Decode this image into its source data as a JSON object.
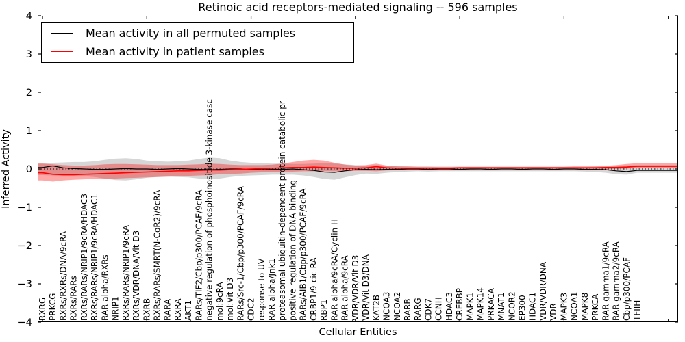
{
  "chart_data": {
    "type": "line",
    "title": "Retinoic acid receptors-mediated signaling -- 596 samples",
    "xlabel": "Cellular Entities",
    "ylabel": "Inferred Activity",
    "ylim": [
      -4,
      4
    ],
    "y_tick_values": [
      4,
      3,
      2,
      1,
      0,
      -1,
      -2,
      -3,
      -4
    ],
    "y_tick_labels": [
      "4",
      "3",
      "2",
      "1",
      "0",
      "−1",
      "−2",
      "−3",
      "−4"
    ],
    "grid": false,
    "legend_position": "upper left",
    "zero_line_style": "dotted",
    "x_label_rotation_deg": 90,
    "categories": [
      "RXRG",
      "PRKCG",
      "RXRs/RXRs/DNA/9cRA",
      "RXRs/RARs",
      "RXRs/RARs/NRIP1/9cRA/HDAC3",
      "RXRs/RARs/NRIP1/9cRA/HDAC1",
      "RAR alpha/RXRs",
      "NRIP1",
      "RXRs/RARs/NRIP1/9cRA",
      "RXRs/VDR/DNA/Vit D3",
      "RXRB",
      "RXRs/RARs/SMRT(N-CoR2)/9cRA",
      "RARA",
      "RXRA",
      "AKT1",
      "RARs/TIF2/Cbp/p300/PCAF/9cRA",
      "negative regulation of phosphoinositide 3-kinase casc",
      "mol:9cRA",
      "mol:Vit D3",
      "RARs/Src-1/Cbp/p300/PCAF/9cRA",
      "CDC2",
      "response to UV",
      "RAR alpha/Jnk1",
      "proteasomal ubiquitin-dependent protein catabolic pr",
      "positive regulation of DNA binding",
      "RARs/AIB1/Cbp/p300/PCAF/9cRA",
      "CRBP1/9-cic-RA",
      "RBP1",
      "RAR alpha/9cRA/Cyclin H",
      "RAR alpha/9cRA",
      "VDR/VDR/Vit D3",
      "VDR/Vit D3/DNA",
      "KAT2B",
      "NCOA3",
      "NCOA2",
      "RARB",
      "RARG",
      "CDK7",
      "CCNH",
      "HDAC3",
      "CREBBP",
      "MAPK1",
      "MAPK14",
      "PRKACA",
      "MNAT1",
      "NCOR2",
      "EP300",
      "HDAC1",
      "VDR/VDR/DNA",
      "VDR",
      "MAPK3",
      "NCOA1",
      "MAPK8",
      "PRKCA",
      "RAR gamma1/9cRA",
      "RAR gamma2/9cRA",
      "Cbp/p300/PCAF",
      "TFIIH"
    ],
    "series": [
      {
        "name": "Mean activity in all permuted samples",
        "color": "#000000",
        "line_width": 1.2,
        "band_color": "#999999",
        "band_alpha": 0.4,
        "values": [
          0.04,
          0.08,
          0.03,
          0.01,
          0.0,
          -0.01,
          -0.01,
          0.0,
          0.01,
          0.0,
          0.0,
          -0.01,
          0.0,
          0.01,
          0.0,
          -0.01,
          -0.02,
          -0.01,
          0.0,
          0.0,
          -0.01,
          -0.02,
          -0.01,
          -0.01,
          0.0,
          -0.02,
          -0.04,
          -0.08,
          -0.09,
          -0.05,
          -0.02,
          -0.01,
          -0.02,
          -0.01,
          -0.01,
          0.0,
          0.0,
          -0.01,
          0.0,
          0.0,
          -0.01,
          0.0,
          0.0,
          -0.01,
          0.0,
          0.0,
          -0.01,
          0.0,
          0.0,
          -0.01,
          0.0,
          0.0,
          -0.01,
          -0.01,
          -0.02,
          -0.05,
          -0.07,
          -0.04
        ],
        "band_upper": [
          0.15,
          0.16,
          0.17,
          0.18,
          0.18,
          0.2,
          0.24,
          0.27,
          0.28,
          0.26,
          0.22,
          0.2,
          0.19,
          0.2,
          0.22,
          0.26,
          0.3,
          0.28,
          0.22,
          0.18,
          0.16,
          0.15,
          0.14,
          0.14,
          0.13,
          0.13,
          0.14,
          0.15,
          0.14,
          0.12,
          0.1,
          0.09,
          0.1,
          0.08,
          0.07,
          0.06,
          0.06,
          0.06,
          0.05,
          0.05,
          0.05,
          0.05,
          0.05,
          0.05,
          0.05,
          0.05,
          0.05,
          0.05,
          0.05,
          0.05,
          0.05,
          0.05,
          0.05,
          0.06,
          0.06,
          0.07,
          0.08,
          0.1
        ],
        "band_lower": [
          -0.16,
          -0.17,
          -0.18,
          -0.18,
          -0.19,
          -0.21,
          -0.25,
          -0.29,
          -0.3,
          -0.27,
          -0.23,
          -0.21,
          -0.2,
          -0.21,
          -0.22,
          -0.25,
          -0.27,
          -0.25,
          -0.21,
          -0.18,
          -0.17,
          -0.16,
          -0.15,
          -0.15,
          -0.15,
          -0.17,
          -0.21,
          -0.26,
          -0.28,
          -0.22,
          -0.16,
          -0.12,
          -0.13,
          -0.1,
          -0.08,
          -0.07,
          -0.06,
          -0.07,
          -0.06,
          -0.06,
          -0.06,
          -0.06,
          -0.06,
          -0.06,
          -0.06,
          -0.06,
          -0.06,
          -0.06,
          -0.06,
          -0.06,
          -0.06,
          -0.06,
          -0.07,
          -0.08,
          -0.1,
          -0.14,
          -0.15,
          -0.1
        ]
      },
      {
        "name": "Mean activity in patient samples",
        "color": "#ff0000",
        "line_width": 1.6,
        "band_color": "#ff0000",
        "band_alpha": 0.35,
        "values": [
          -0.1,
          -0.14,
          -0.15,
          -0.15,
          -0.14,
          -0.13,
          -0.12,
          -0.11,
          -0.1,
          -0.09,
          -0.08,
          -0.07,
          -0.06,
          -0.05,
          -0.05,
          -0.04,
          -0.03,
          -0.03,
          -0.02,
          -0.01,
          0.0,
          0.01,
          0.02,
          0.03,
          0.04,
          0.04,
          0.05,
          0.04,
          0.03,
          0.02,
          0.02,
          0.03,
          0.06,
          0.03,
          0.02,
          0.02,
          0.02,
          0.02,
          0.02,
          0.02,
          0.03,
          0.03,
          0.03,
          0.03,
          0.03,
          0.03,
          0.03,
          0.03,
          0.03,
          0.03,
          0.03,
          0.03,
          0.03,
          0.03,
          0.04,
          0.04,
          0.05,
          0.07
        ],
        "band_upper": [
          0.14,
          0.12,
          0.1,
          0.09,
          0.09,
          0.1,
          0.12,
          0.13,
          0.13,
          0.12,
          0.11,
          0.1,
          0.1,
          0.1,
          0.11,
          0.12,
          0.14,
          0.13,
          0.11,
          0.1,
          0.1,
          0.1,
          0.11,
          0.14,
          0.18,
          0.22,
          0.24,
          0.22,
          0.16,
          0.11,
          0.09,
          0.1,
          0.14,
          0.09,
          0.07,
          0.07,
          0.06,
          0.06,
          0.06,
          0.06,
          0.06,
          0.06,
          0.06,
          0.06,
          0.06,
          0.06,
          0.06,
          0.06,
          0.06,
          0.06,
          0.06,
          0.07,
          0.07,
          0.07,
          0.08,
          0.1,
          0.13,
          0.15
        ],
        "band_lower": [
          -0.3,
          -0.33,
          -0.3,
          -0.28,
          -0.27,
          -0.26,
          -0.26,
          -0.25,
          -0.24,
          -0.23,
          -0.22,
          -0.21,
          -0.2,
          -0.19,
          -0.18,
          -0.17,
          -0.16,
          -0.14,
          -0.13,
          -0.12,
          -0.1,
          -0.09,
          -0.08,
          -0.07,
          -0.07,
          -0.06,
          -0.06,
          -0.06,
          -0.06,
          -0.06,
          -0.05,
          -0.05,
          -0.06,
          -0.04,
          -0.03,
          -0.03,
          -0.02,
          -0.02,
          -0.02,
          -0.02,
          -0.02,
          -0.02,
          -0.01,
          -0.01,
          -0.01,
          -0.01,
          -0.01,
          -0.01,
          -0.01,
          -0.01,
          -0.01,
          -0.01,
          -0.01,
          -0.01,
          -0.01,
          0.0,
          0.01,
          0.02
        ]
      }
    ]
  },
  "legend": {
    "entries": [
      {
        "label": "Mean activity in all permuted samples",
        "color": "#000000"
      },
      {
        "label": "Mean activity in patient samples",
        "color": "#ff0000"
      }
    ]
  }
}
